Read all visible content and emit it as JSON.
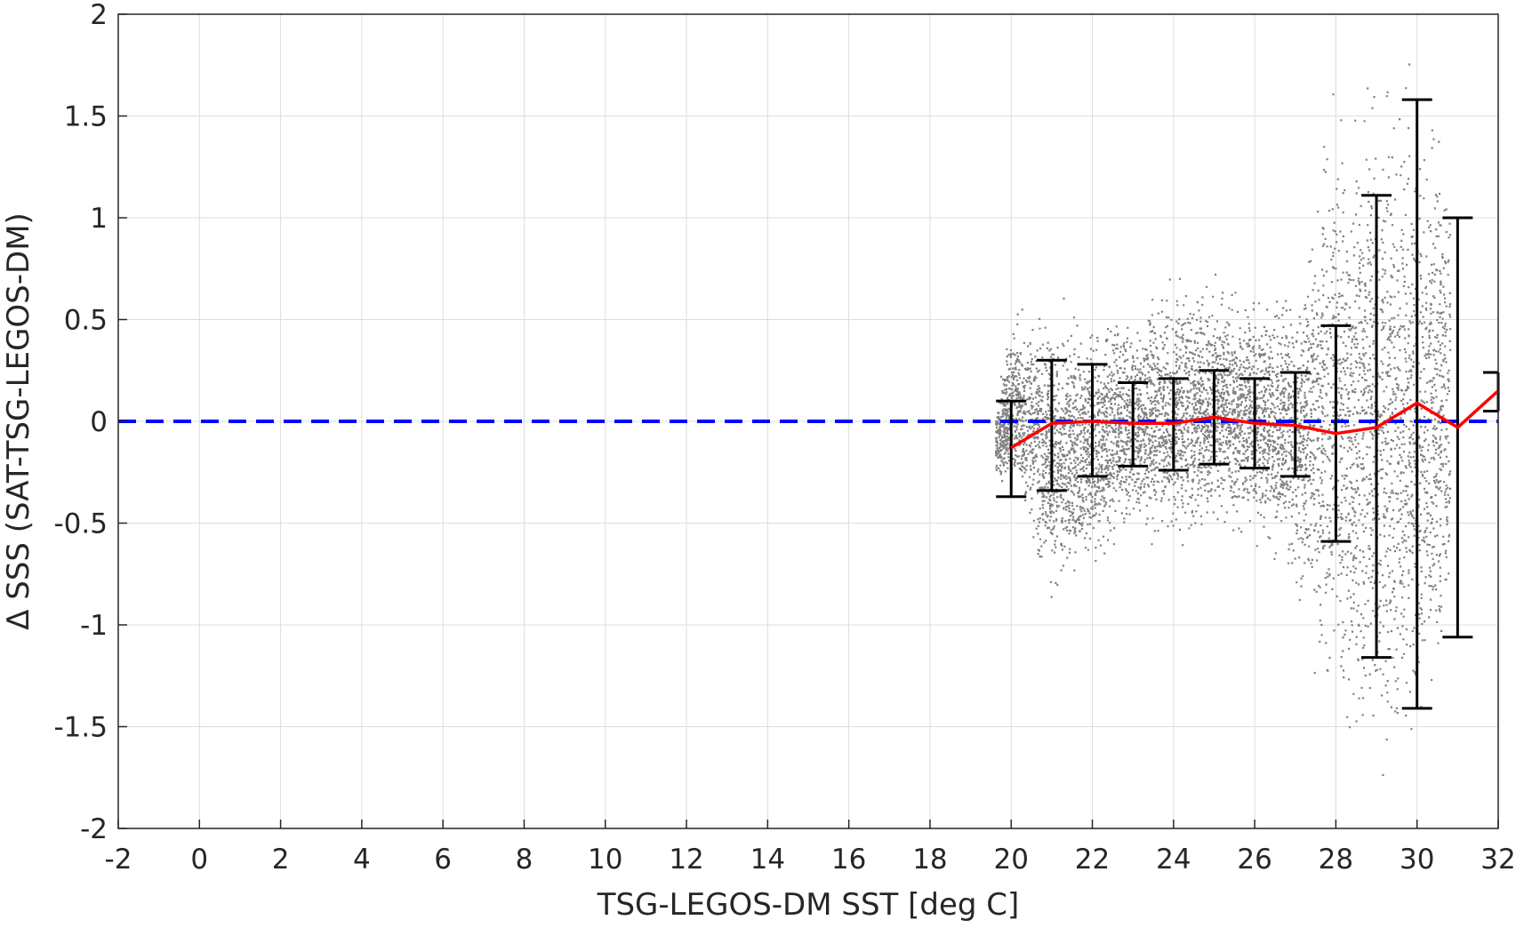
{
  "chart_data": {
    "type": "scatter",
    "title": "",
    "xlabel": "TSG-LEGOS-DM SST [deg C]",
    "ylabel": "Δ SSS (SAT-TSG-LEGOS-DM)",
    "xlim": [
      -2,
      32
    ],
    "ylim": [
      -2,
      2
    ],
    "xticks": [
      -2,
      0,
      2,
      4,
      6,
      8,
      10,
      12,
      14,
      16,
      18,
      20,
      22,
      24,
      26,
      28,
      30,
      32
    ],
    "yticks": [
      -2,
      -1.5,
      -1,
      -0.5,
      0,
      0.5,
      1,
      1.5,
      2
    ],
    "xtick_labels": [
      "-2",
      "0",
      "2",
      "4",
      "6",
      "8",
      "10",
      "12",
      "14",
      "16",
      "18",
      "20",
      "22",
      "24",
      "26",
      "28",
      "30",
      "32"
    ],
    "ytick_labels": [
      "-2",
      "-1.5",
      "-1",
      "-0.5",
      "0",
      "0.5",
      "1",
      "1.5",
      "2"
    ],
    "grid": true,
    "reference_line": {
      "y": 0,
      "style": "dashed",
      "color": "#0000ff"
    },
    "scatter_cloud": {
      "color": "#808080",
      "description_envelope": [
        {
          "x": 19.6,
          "lo": -0.3,
          "hi": 0.1
        },
        {
          "x": 20,
          "lo": -0.4,
          "hi": 0.6
        },
        {
          "x": 21,
          "lo": -1.05,
          "hi": 0.65
        },
        {
          "x": 22,
          "lo": -0.85,
          "hi": 0.6
        },
        {
          "x": 23,
          "lo": -0.6,
          "hi": 0.6
        },
        {
          "x": 24,
          "lo": -0.7,
          "hi": 0.8
        },
        {
          "x": 25,
          "lo": -0.6,
          "hi": 0.75
        },
        {
          "x": 26,
          "lo": -0.65,
          "hi": 0.7
        },
        {
          "x": 27,
          "lo": -0.9,
          "hi": 0.8
        },
        {
          "x": 28,
          "lo": -1.8,
          "hi": 1.9
        },
        {
          "x": 29,
          "lo": -2.0,
          "hi": 2.0
        },
        {
          "x": 30,
          "lo": -2.0,
          "hi": 2.0
        },
        {
          "x": 30.8,
          "lo": -1.3,
          "hi": 1.5
        }
      ]
    },
    "series": [
      {
        "type": "line",
        "color": "#ff0000",
        "x": [
          20,
          21,
          22,
          23,
          24,
          25,
          26,
          27,
          28,
          29,
          30,
          31,
          32
        ],
        "y": [
          -0.13,
          -0.01,
          0.0,
          -0.01,
          -0.01,
          0.02,
          -0.01,
          -0.02,
          -0.06,
          -0.03,
          0.09,
          -0.03,
          0.15
        ]
      },
      {
        "type": "errorbar",
        "color": "#000000",
        "x": [
          20,
          21,
          22,
          23,
          24,
          25,
          26,
          27,
          28,
          29,
          30,
          31,
          32
        ],
        "lower": [
          -0.37,
          -0.34,
          -0.27,
          -0.22,
          -0.24,
          -0.21,
          -0.23,
          -0.27,
          -0.59,
          -1.16,
          -1.41,
          -1.06,
          0.05
        ],
        "upper": [
          0.1,
          0.3,
          0.28,
          0.19,
          0.21,
          0.25,
          0.21,
          0.24,
          0.47,
          1.11,
          1.58,
          1.0,
          0.24
        ]
      }
    ]
  }
}
